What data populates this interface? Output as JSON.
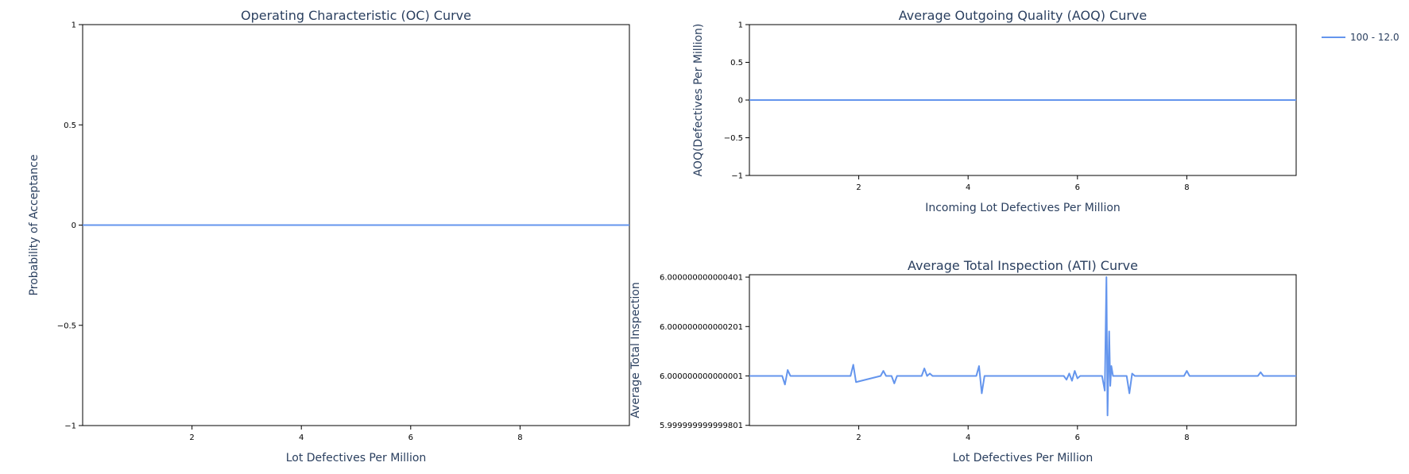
{
  "colors": {
    "series": "#6495ed",
    "text": "#2a3f5f"
  },
  "legend": {
    "entries": [
      "100 - 12.0"
    ],
    "placement": "top-right"
  },
  "chart_data": [
    {
      "id": "oc",
      "type": "line",
      "title": "Operating Characteristic (OC) Curve",
      "xlabel": "Lot Defectives Per Million",
      "ylabel": "Probability of Acceptance",
      "xlim": [
        0,
        10
      ],
      "ylim": [
        -1,
        1
      ],
      "xticks": [
        2,
        4,
        6,
        8
      ],
      "yticks": [
        -1,
        -0.5,
        0,
        0.5,
        1
      ],
      "yticklabels": [
        "−1",
        "−0.5",
        "0",
        "0.5",
        "1"
      ],
      "grid": false,
      "series": [
        {
          "name": "100 - 12.0",
          "x": [
            0,
            10
          ],
          "y": [
            0,
            0
          ]
        }
      ]
    },
    {
      "id": "aoq",
      "type": "line",
      "title": "Average Outgoing Quality (AOQ) Curve",
      "xlabel": "Incoming Lot Defectives Per Million",
      "ylabel": "AOQ(Defectives Per Million)",
      "xlim": [
        0,
        10
      ],
      "ylim": [
        -1,
        1
      ],
      "xticks": [
        2,
        4,
        6,
        8
      ],
      "yticks": [
        -1,
        -0.5,
        0,
        0.5,
        1
      ],
      "yticklabels": [
        "−1",
        "−0.5",
        "0",
        "0.5",
        "1"
      ],
      "grid": false,
      "series": [
        {
          "name": "100 - 12.0",
          "x": [
            0,
            10
          ],
          "y": [
            0,
            0
          ]
        }
      ]
    },
    {
      "id": "ati",
      "type": "line",
      "title": "Average Total Inspection (ATI) Curve",
      "xlabel": "Lot Defectives Per Million",
      "ylabel": "Average Total Inspection",
      "xlim": [
        0,
        10
      ],
      "ylim": [
        5.9999999999998,
        6.00000000000041
      ],
      "xticks": [
        2,
        4,
        6,
        8
      ],
      "yticks": [
        5.999999999999801,
        6.000000000000001,
        6.000000000000201,
        6.000000000000401
      ],
      "yticklabels": [
        "5.999999999999801",
        "6.000000000000001",
        "6.000000000000201",
        "6.000000000000401"
      ],
      "grid": false,
      "series": [
        {
          "name": "100 - 12.0",
          "x": [
            0.0,
            0.6,
            0.65,
            0.7,
            0.75,
            0.8,
            0.9,
            1.0,
            1.3,
            1.85,
            1.9,
            1.95,
            2.4,
            2.45,
            2.5,
            2.6,
            2.65,
            2.7,
            3.0,
            3.15,
            3.2,
            3.25,
            3.3,
            3.35,
            4.15,
            4.2,
            4.25,
            4.3,
            4.5,
            5.75,
            5.8,
            5.85,
            5.9,
            5.95,
            6.0,
            6.05,
            6.1,
            6.45,
            6.5,
            6.53,
            6.55,
            6.58,
            6.6,
            6.62,
            6.65,
            6.7,
            6.9,
            6.95,
            7.0,
            7.05,
            7.5,
            7.95,
            8.0,
            8.05,
            9.3,
            9.35,
            9.4,
            10.0
          ],
          "y": [
            6.000000000000001,
            6.000000000000001,
            5.999999999999966,
            6.000000000000025,
            6.000000000000001,
            6.000000000000001,
            6.000000000000001,
            6.000000000000001,
            6.000000000000001,
            6.000000000000001,
            6.000000000000046,
            5.999999999999976,
            6.000000000000001,
            6.000000000000021,
            6.000000000000001,
            6.000000000000001,
            5.999999999999971,
            6.000000000000001,
            6.000000000000001,
            6.000000000000001,
            6.000000000000031,
            6.000000000000001,
            6.000000000000011,
            6.000000000000001,
            6.000000000000001,
            6.000000000000041,
            5.999999999999931,
            6.000000000000001,
            6.000000000000001,
            6.000000000000001,
            5.999999999999986,
            6.000000000000011,
            5.999999999999981,
            6.000000000000021,
            5.999999999999991,
            6.000000000000001,
            6.000000000000001,
            6.000000000000001,
            5.999999999999941,
            6.000000000000401,
            5.999999999999841,
            6.000000000000181,
            5.999999999999961,
            6.000000000000041,
            6.000000000000001,
            6.000000000000001,
            6.000000000000001,
            5.999999999999931,
            6.000000000000011,
            6.000000000000001,
            6.000000000000001,
            6.000000000000001,
            6.000000000000021,
            6.000000000000001,
            6.000000000000001,
            6.000000000000016,
            6.000000000000001,
            6.000000000000001
          ]
        }
      ]
    }
  ]
}
